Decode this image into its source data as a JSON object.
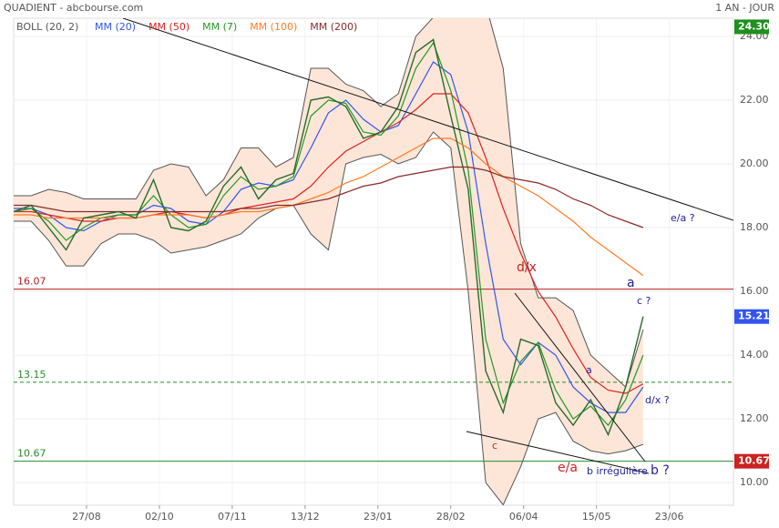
{
  "chart_data": {
    "type": "line",
    "title": "QUADIENT - abcbourse.com",
    "period": "1 AN - JOUR",
    "bands_name": "BOLL (20, 2)",
    "x": [
      0,
      6,
      12,
      18,
      24,
      30,
      36,
      42,
      48,
      54,
      60,
      66,
      72,
      78,
      84,
      90,
      96,
      102,
      108,
      114,
      120,
      126,
      132,
      138,
      144,
      150,
      156,
      162,
      168,
      174,
      180,
      186,
      192,
      198,
      204,
      210,
      216
    ],
    "xlim": [
      0,
      247
    ],
    "xticks": [
      {
        "value": 25,
        "label": "27/08"
      },
      {
        "value": 50,
        "label": "02/10"
      },
      {
        "value": 75,
        "label": "07/11"
      },
      {
        "value": 100,
        "label": "13/12"
      },
      {
        "value": 125,
        "label": "23/01"
      },
      {
        "value": 150,
        "label": "28/02"
      },
      {
        "value": 175,
        "label": "06/04"
      },
      {
        "value": 200,
        "label": "15/05"
      },
      {
        "value": 225,
        "label": "23/06"
      }
    ],
    "ylim": [
      9.29,
      24.57
    ],
    "yticks": [
      {
        "value": 10,
        "label": "10.00"
      },
      {
        "value": 12,
        "label": "12.00"
      },
      {
        "value": 14,
        "label": "14.00"
      },
      {
        "value": 16,
        "label": "16.00"
      },
      {
        "value": 18,
        "label": "18.00"
      },
      {
        "value": 20,
        "label": "20.00"
      },
      {
        "value": 22,
        "label": "22.00"
      },
      {
        "value": 24,
        "label": "24.00"
      }
    ],
    "grid": true,
    "price": {
      "color": "#2a6a2a",
      "values": [
        18.5,
        18.7,
        18.0,
        17.3,
        18.3,
        18.4,
        18.5,
        18.3,
        19.5,
        18.0,
        17.9,
        18.2,
        19.3,
        19.9,
        18.9,
        19.5,
        19.7,
        22.0,
        22.1,
        21.8,
        20.8,
        21.0,
        21.8,
        23.5,
        23.9,
        21.5,
        19.2,
        13.5,
        12.2,
        14.5,
        14.3,
        12.5,
        11.8,
        12.6,
        11.5,
        13.0,
        15.21
      ]
    },
    "bands": {
      "color": "#555555",
      "fill": "#fde6d8",
      "upper": [
        19.0,
        19.0,
        19.2,
        19.1,
        18.9,
        18.9,
        18.9,
        18.9,
        19.8,
        20.0,
        19.9,
        19.0,
        19.5,
        20.5,
        20.5,
        19.9,
        20.2,
        23.0,
        23.0,
        22.5,
        22.3,
        21.8,
        22.2,
        24.0,
        24.6,
        24.6,
        24.8,
        25.0,
        23.0,
        17.5,
        15.8,
        15.8,
        15.4,
        14.0,
        13.5,
        13.0,
        14.8
      ],
      "lower": [
        18.2,
        18.2,
        17.6,
        16.8,
        16.8,
        17.5,
        17.8,
        17.8,
        17.6,
        17.2,
        17.3,
        17.4,
        17.6,
        17.8,
        18.3,
        18.6,
        18.7,
        17.8,
        17.3,
        20.0,
        20.2,
        20.3,
        20.0,
        20.2,
        21.0,
        20.5,
        16.0,
        10.0,
        9.3,
        10.5,
        12.0,
        12.2,
        11.3,
        11.0,
        10.9,
        11.0,
        11.2
      ]
    },
    "series": [
      {
        "name": "MM (20)",
        "color": "#3355ee",
        "values": [
          18.6,
          18.6,
          18.4,
          18.0,
          17.9,
          18.2,
          18.4,
          18.4,
          18.7,
          18.6,
          18.2,
          18.1,
          18.5,
          19.2,
          19.4,
          19.3,
          19.5,
          20.5,
          21.6,
          22.0,
          21.4,
          21.0,
          21.2,
          22.2,
          23.2,
          22.8,
          21.0,
          17.5,
          14.5,
          13.7,
          14.4,
          14.0,
          13.0,
          12.5,
          12.2,
          12.2,
          13.0
        ]
      },
      {
        "name": "MM (50)",
        "color": "#dd2222",
        "values": [
          18.5,
          18.5,
          18.4,
          18.3,
          18.2,
          18.2,
          18.3,
          18.3,
          18.4,
          18.5,
          18.4,
          18.3,
          18.4,
          18.6,
          18.7,
          18.8,
          18.9,
          19.3,
          19.9,
          20.4,
          20.7,
          21.0,
          21.3,
          21.7,
          22.2,
          22.2,
          21.6,
          20.2,
          18.6,
          17.2,
          16.0,
          15.2,
          14.2,
          13.3,
          12.9,
          12.8,
          13.1
        ]
      },
      {
        "name": "MM (7)",
        "color": "#229922",
        "values": [
          18.5,
          18.6,
          18.2,
          17.6,
          18.0,
          18.3,
          18.4,
          18.4,
          19.0,
          18.4,
          18.0,
          18.1,
          19.0,
          19.6,
          19.2,
          19.3,
          19.6,
          21.5,
          22.0,
          21.9,
          21.0,
          20.9,
          21.5,
          23.0,
          23.8,
          22.3,
          19.8,
          14.5,
          12.5,
          13.8,
          14.4,
          12.9,
          12.0,
          12.4,
          11.8,
          12.6,
          14.0
        ]
      },
      {
        "name": "MM (100)",
        "color": "#ff7a22",
        "values": [
          18.4,
          18.4,
          18.3,
          18.3,
          18.3,
          18.3,
          18.3,
          18.3,
          18.4,
          18.4,
          18.4,
          18.3,
          18.4,
          18.5,
          18.5,
          18.6,
          18.7,
          18.9,
          19.1,
          19.4,
          19.6,
          19.9,
          20.2,
          20.5,
          20.8,
          20.8,
          20.5,
          20.0,
          19.6,
          19.3,
          19.0,
          18.6,
          18.2,
          17.7,
          17.3,
          16.9,
          16.5
        ]
      },
      {
        "name": "MM (200)",
        "color": "#8a2a2a",
        "values": [
          18.7,
          18.7,
          18.6,
          18.5,
          18.5,
          18.5,
          18.5,
          18.5,
          18.5,
          18.5,
          18.5,
          18.5,
          18.5,
          18.6,
          18.6,
          18.7,
          18.7,
          18.8,
          18.9,
          19.1,
          19.3,
          19.4,
          19.6,
          19.7,
          19.8,
          19.9,
          19.9,
          19.8,
          19.6,
          19.5,
          19.4,
          19.2,
          18.9,
          18.7,
          18.4,
          18.2,
          18.0
        ]
      }
    ],
    "levels": [
      {
        "value": 16.07,
        "color": "#b22222",
        "dashed": false
      },
      {
        "value": 13.15,
        "color": "#2a8a2a",
        "dashed": true
      },
      {
        "value": 10.67,
        "color": "#2a8a2a",
        "dashed": false
      }
    ],
    "price_tags": [
      {
        "value": 24.3,
        "label": "24.30",
        "color": "#1f8f1f"
      },
      {
        "value": 15.21,
        "label": "15.21",
        "color": "#3355ee"
      },
      {
        "value": 10.67,
        "label": "10.67",
        "color": "#cc2222"
      }
    ],
    "annotations": [
      "e/a ?",
      "d/x",
      "a",
      "c ?",
      "a",
      "d/x ?",
      "c",
      "e/a",
      "b irrégulière",
      "b ?"
    ]
  }
}
